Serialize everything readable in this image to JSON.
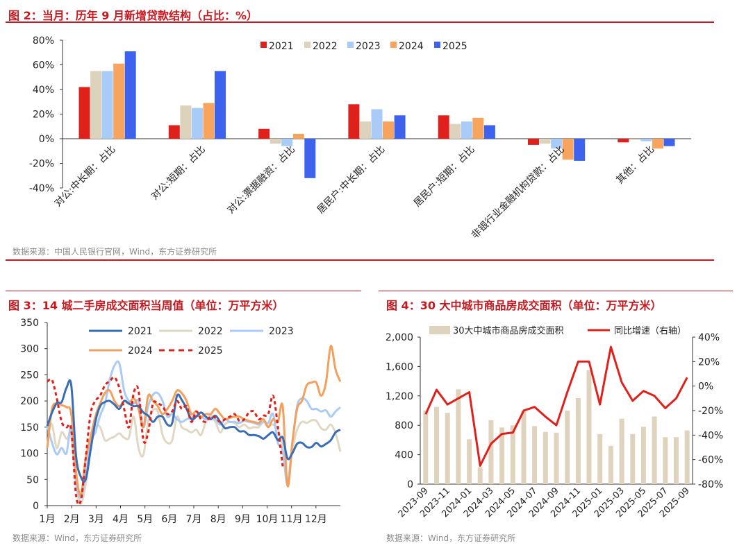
{
  "colors": {
    "accent": "#c8171e"
  },
  "fig2": {
    "title": "图 2：当月：历年 9 月新增贷款结构（占比：%）",
    "source": "数据来源：中国人民银行官网，Wind，东方证券研究所"
  },
  "fig3": {
    "title": "图 3：14 城二手房成交面积当周值（单位：万平方米）",
    "source": "数据来源：Wind，东方证券研究所"
  },
  "fig4": {
    "title": "图 4：30 大中城市商品房成交面积（单位：万平方米）",
    "source": "数据来源：Wind，东方证券研究所"
  },
  "chart_data": [
    {
      "id": "fig2",
      "type": "bar",
      "title": "当月：历年 9 月新增贷款结构（占比：%）",
      "categories": [
        "对公:中长期：占比",
        "对公:短期：占比",
        "对公:票据融资：占比",
        "居民户:中长期：占比",
        "居民户:短期：占比",
        "非银行业金融机构贷款：占比",
        "其他：占比"
      ],
      "ylim": [
        -40,
        80
      ],
      "yticks": [
        "80%",
        "60%",
        "40%",
        "20%",
        "0%",
        "-20%",
        "-40%"
      ],
      "legend_position": "top-right",
      "series": [
        {
          "name": "2021",
          "color": "#e0201b",
          "values": [
            42,
            11,
            8,
            28,
            19,
            -5,
            -3
          ]
        },
        {
          "name": "2022",
          "color": "#ddd2bc",
          "values": [
            55,
            27,
            -4,
            14,
            12,
            -4,
            -1
          ]
        },
        {
          "name": "2023",
          "color": "#a9cbf7",
          "values": [
            55,
            25,
            -6,
            24,
            14,
            -8,
            -2
          ]
        },
        {
          "name": "2024",
          "color": "#f7a45e",
          "values": [
            61,
            29,
            4,
            14,
            17,
            -17,
            -8
          ]
        },
        {
          "name": "2025",
          "color": "#3d63ee",
          "values": [
            71,
            55,
            -32,
            19,
            11,
            -18,
            -6
          ]
        }
      ]
    },
    {
      "id": "fig3",
      "type": "line",
      "title": "14 城二手房成交面积当周值（单位：万平方米）",
      "xlabels": [
        "1月",
        "2月",
        "3月",
        "4月",
        "5月",
        "6月",
        "7月",
        "8月",
        "9月",
        "10月",
        "11月",
        "12月"
      ],
      "ylim": [
        0,
        350
      ],
      "yticks": [
        0,
        50,
        100,
        150,
        200,
        250,
        300,
        350
      ],
      "legend_position": "top-center",
      "series": [
        {
          "name": "2021",
          "color": "#3a6db5",
          "dash": "",
          "values": [
            152,
            178,
            196,
            198,
            225,
            230,
            95,
            55,
            50,
            105,
            160,
            190,
            198,
            200,
            193,
            185,
            200,
            195,
            190,
            190,
            178,
            172,
            160,
            170,
            170,
            155,
            158,
            210,
            202,
            185,
            165,
            170,
            178,
            170,
            165,
            172,
            160,
            148,
            150,
            150,
            142,
            142,
            135,
            135,
            133,
            128,
            135,
            140,
            125,
            130,
            90,
            100,
            118,
            120,
            112,
            112,
            120,
            113,
            118,
            125,
            140,
            145
          ]
        },
        {
          "name": "2022",
          "color": "#e2d7c2",
          "values": [
            150,
            155,
            110,
            140,
            128,
            130,
            40,
            5,
            40,
            108,
            150,
            150,
            125,
            128,
            132,
            138,
            130,
            130,
            170,
            110,
            97,
            160,
            182,
            180,
            135,
            120,
            125,
            170,
            150,
            145,
            140,
            145,
            135,
            160,
            172,
            160,
            140,
            156,
            160,
            158,
            150,
            155,
            148,
            150,
            150,
            160,
            152,
            155,
            145,
            110,
            38,
            105,
            145,
            160,
            158,
            163,
            162,
            148,
            145,
            155,
            138,
            103
          ]
        },
        {
          "name": "2023",
          "color": "#a9cbf7",
          "values": [
            153,
            120,
            98,
            110,
            100,
            150,
            45,
            15,
            60,
            120,
            140,
            172,
            195,
            240,
            268,
            272,
            220,
            200,
            195,
            200,
            150,
            190,
            212,
            215,
            200,
            170,
            175,
            165,
            160,
            165,
            168,
            172,
            170,
            165,
            168,
            165,
            155,
            165,
            160,
            160,
            158,
            162,
            160,
            158,
            155,
            160,
            158,
            175,
            120,
            105,
            42,
            120,
            190,
            205,
            200,
            185,
            185,
            180,
            182,
            170,
            180,
            188
          ]
        },
        {
          "name": "2024",
          "color": "#f4a05c",
          "values": [
            110,
            185,
            195,
            192,
            188,
            175,
            65,
            20,
            90,
            130,
            170,
            195,
            215,
            220,
            200,
            190,
            200,
            195,
            205,
            185,
            150,
            210,
            200,
            190,
            175,
            185,
            200,
            220,
            215,
            200,
            175,
            180,
            170,
            175,
            175,
            185,
            175,
            165,
            168,
            170,
            170,
            165,
            162,
            160,
            158,
            165,
            150,
            165,
            160,
            190,
            38,
            120,
            185,
            200,
            230,
            235,
            235,
            210,
            235,
            305,
            260,
            237
          ]
        },
        {
          "name": "2025",
          "color": "#e0201b",
          "dash": "5,4",
          "values": [
            237,
            240,
            205,
            160,
            150,
            145,
            20,
            10,
            90,
            175,
            200,
            210,
            230,
            238,
            245,
            225,
            185,
            150,
            215,
            220,
            125,
            140,
            195,
            195,
            190,
            175,
            180,
            200,
            185,
            190,
            160,
            180,
            165,
            160,
            170,
            168,
            160,
            165,
            170,
            175,
            162,
            165,
            178,
            180,
            165,
            172,
            175,
            210,
            150,
            75
          ]
        }
      ]
    },
    {
      "id": "fig4",
      "type": "bar",
      "title": "30 大中城市商品房成交面积（单位：万平方米）",
      "categories": [
        "2023-09",
        "2023-10",
        "2023-11",
        "2023-12",
        "2024-01",
        "2024-02",
        "2024-03",
        "2024-04",
        "2024-05",
        "2024-06",
        "2024-07",
        "2024-08",
        "2024-09",
        "2024-10",
        "2024-11",
        "2024-12",
        "2025-01",
        "2025-02",
        "2025-03",
        "2025-04",
        "2025-05",
        "2025-06",
        "2025-07",
        "2025-08",
        "2025-09"
      ],
      "xtick_labels": [
        "2023-09",
        "2023-11",
        "2024-01",
        "2024-03",
        "2024-05",
        "2024-07",
        "2024-09",
        "2024-11",
        "2025-01",
        "2025-03",
        "2025-05",
        "2025-07",
        "2025-09"
      ],
      "ylim": [
        0,
        2000
      ],
      "yticks": [
        "0",
        "400",
        "800",
        "1,200",
        "1,600",
        "2,000"
      ],
      "y2lim": [
        -80,
        40
      ],
      "y2ticks": [
        "40%",
        "20%",
        "0%",
        "-20%",
        "-40%",
        "-60%",
        "-80%"
      ],
      "legend_position": "top-center",
      "series": [
        {
          "name": "30大中城市商品房成交面积",
          "color": "#dfd3bd",
          "axis": "left",
          "values": [
            1000,
            1050,
            970,
            1290,
            610,
            230,
            870,
            770,
            800,
            1000,
            790,
            710,
            700,
            1000,
            1170,
            1550,
            680,
            520,
            890,
            680,
            780,
            920,
            640,
            640,
            730
          ]
        },
        {
          "name": "同比增速（右轴）",
          "color": "#e0201b",
          "axis": "right",
          "values": [
            -23,
            -3,
            -15,
            -10,
            -5,
            -65,
            -47,
            -39,
            -38,
            -20,
            -17,
            -25,
            -32,
            -5,
            20,
            20,
            -15,
            32,
            3,
            -12,
            -4,
            -8,
            -18,
            -10,
            7
          ]
        }
      ]
    }
  ]
}
